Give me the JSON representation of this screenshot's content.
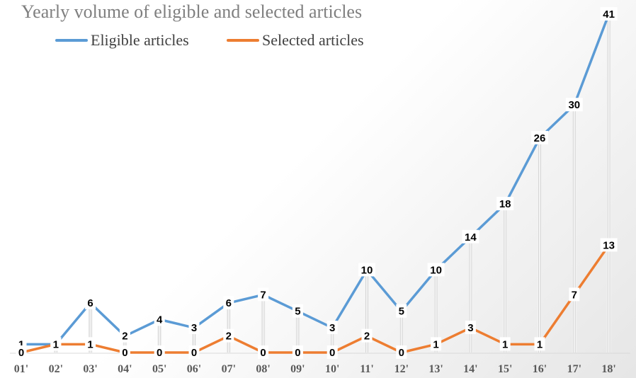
{
  "chart_data": {
    "type": "line",
    "title": "Yearly volume of eligible and selected articles",
    "xlabel": "",
    "ylabel": "",
    "categories": [
      "01'",
      "02'",
      "03'",
      "04'",
      "05'",
      "06'",
      "07'",
      "08'",
      "09'",
      "10'",
      "11'",
      "12'",
      "13'",
      "14'",
      "15'",
      "16'",
      "17'",
      "18'"
    ],
    "ylim": [
      0,
      41
    ],
    "grid": false,
    "legend_placement": "top-left",
    "series": [
      {
        "name": "Eligible articles",
        "color": "#5b9bd5",
        "values": [
          1,
          1,
          6,
          2,
          4,
          3,
          6,
          7,
          5,
          3,
          10,
          5,
          10,
          14,
          18,
          26,
          30,
          41
        ]
      },
      {
        "name": "Selected articles",
        "color": "#ed7d31",
        "values": [
          0,
          1,
          1,
          0,
          0,
          0,
          2,
          0,
          0,
          0,
          2,
          0,
          1,
          3,
          1,
          1,
          7,
          13
        ]
      }
    ]
  }
}
